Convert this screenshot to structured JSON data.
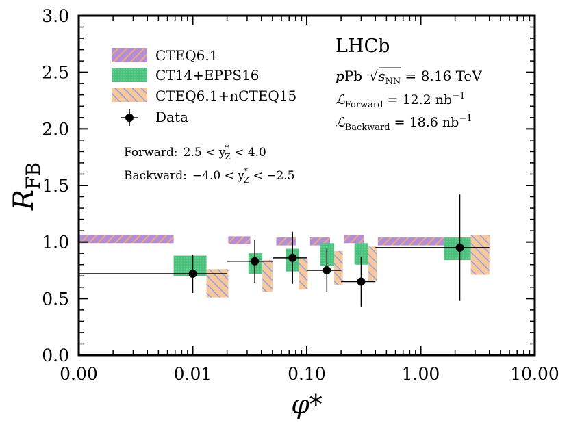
{
  "chart_data": {
    "type": "bar",
    "title": "",
    "xlabel": "φ*",
    "ylabel": "R",
    "ylabel_subscript": "FB",
    "x_scale": "log",
    "xlim": [
      0.001,
      10
    ],
    "ylim": [
      0.0,
      3.0
    ],
    "x_tick_labels": [
      "0.00",
      "0.01",
      "0.10",
      "1.00",
      "10.00"
    ],
    "y_tick_labels": [
      "0.0",
      "0.5",
      "1.0",
      "1.5",
      "2.0",
      "2.5",
      "3.0"
    ],
    "bins": [
      [
        0.001,
        0.02
      ],
      [
        0.02,
        0.05
      ],
      [
        0.05,
        0.1
      ],
      [
        0.1,
        0.2
      ],
      [
        0.2,
        0.4
      ],
      [
        0.4,
        4.0
      ]
    ],
    "series": [
      {
        "name": "CTEQ6.1",
        "kind": "band",
        "color": "#b18fd6",
        "hatch_color": "#f4a77d",
        "boxes": [
          {
            "x": [
              0.001,
              0.0068
            ],
            "y": [
              0.99,
              1.06
            ]
          },
          {
            "x": [
              0.0205,
              0.032
            ],
            "y": [
              0.98,
              1.05
            ]
          },
          {
            "x": [
              0.054,
              0.08
            ],
            "y": [
              0.97,
              1.04
            ]
          },
          {
            "x": [
              0.107,
              0.16
            ],
            "y": [
              0.97,
              1.04
            ]
          },
          {
            "x": [
              0.212,
              0.315
            ],
            "y": [
              0.99,
              1.06
            ]
          },
          {
            "x": [
              0.42,
              1.6
            ],
            "y": [
              0.97,
              1.04
            ]
          }
        ]
      },
      {
        "name": "CT14+EPPS16",
        "kind": "band",
        "color": "#4cc17e",
        "boxes": [
          {
            "x": [
              0.0068,
              0.0132
            ],
            "y": [
              0.7,
              0.88
            ]
          },
          {
            "x": [
              0.0308,
              0.0408
            ],
            "y": [
              0.72,
              0.9
            ]
          },
          {
            "x": [
              0.0655,
              0.0855
            ],
            "y": [
              0.74,
              0.94
            ]
          },
          {
            "x": [
              0.131,
              0.174
            ],
            "y": [
              0.79,
              0.99
            ]
          },
          {
            "x": [
              0.262,
              0.345
            ],
            "y": [
              0.8,
              0.99
            ]
          },
          {
            "x": [
              1.6,
              2.75
            ],
            "y": [
              0.84,
              1.04
            ]
          }
        ]
      },
      {
        "name": "CTEQ6.1+nCTEQ15",
        "kind": "band",
        "color": "#f9c79c",
        "hatch_color": "#8ca0e0",
        "boxes": [
          {
            "x": [
              0.0132,
              0.0205
            ],
            "y": [
              0.51,
              0.76
            ]
          },
          {
            "x": [
              0.0408,
              0.05
            ],
            "y": [
              0.56,
              0.84
            ]
          },
          {
            "x": [
              0.0855,
              0.102
            ],
            "y": [
              0.58,
              0.85
            ]
          },
          {
            "x": [
              0.174,
              0.207
            ],
            "y": [
              0.62,
              0.92
            ]
          },
          {
            "x": [
              0.345,
              0.41
            ],
            "y": [
              0.66,
              0.96
            ]
          },
          {
            "x": [
              2.75,
              4.0
            ],
            "y": [
              0.71,
              1.06
            ]
          }
        ]
      },
      {
        "name": "Data",
        "kind": "points",
        "color": "#000000",
        "points": [
          {
            "x": 0.01,
            "y": 0.72,
            "err": 0.17,
            "xbin": [
              0.001,
              0.02
            ]
          },
          {
            "x": 0.035,
            "y": 0.83,
            "err": 0.19,
            "xbin": [
              0.02,
              0.05
            ]
          },
          {
            "x": 0.075,
            "y": 0.86,
            "err": 0.23,
            "xbin": [
              0.05,
              0.1
            ]
          },
          {
            "x": 0.15,
            "y": 0.75,
            "err": 0.19,
            "xbin": [
              0.1,
              0.2
            ]
          },
          {
            "x": 0.3,
            "y": 0.65,
            "err": 0.22,
            "xbin": [
              0.2,
              0.4
            ]
          },
          {
            "x": 2.2,
            "y": 0.95,
            "err": 0.47,
            "xbin": [
              0.4,
              4.0
            ]
          }
        ]
      }
    ],
    "legend": {
      "placement": "top-left",
      "entries": [
        "CTEQ6.1",
        "CT14+EPPS16",
        "CTEQ6.1+nCTEQ15",
        "Data"
      ]
    },
    "annotations": {
      "experiment": "LHCb",
      "system_prefix": "pPb",
      "energy_value": " = 8.16 TeV",
      "lumi_forward_sub": "Forward",
      "lumi_forward_value": " = 12.2 nb",
      "lumi_backward_sub": "Backward",
      "lumi_backward_value": " = 18.6 nb",
      "lumi_exponent": "−1",
      "forward_label": "Forward:",
      "forward_range": "2.5 < y",
      "forward_range_end": " < 4.0",
      "backward_label": "Backward:",
      "backward_range": "−4.0 < y",
      "backward_range_end": " < −2.5",
      "y_sub": "Z",
      "y_sup": "*"
    }
  }
}
